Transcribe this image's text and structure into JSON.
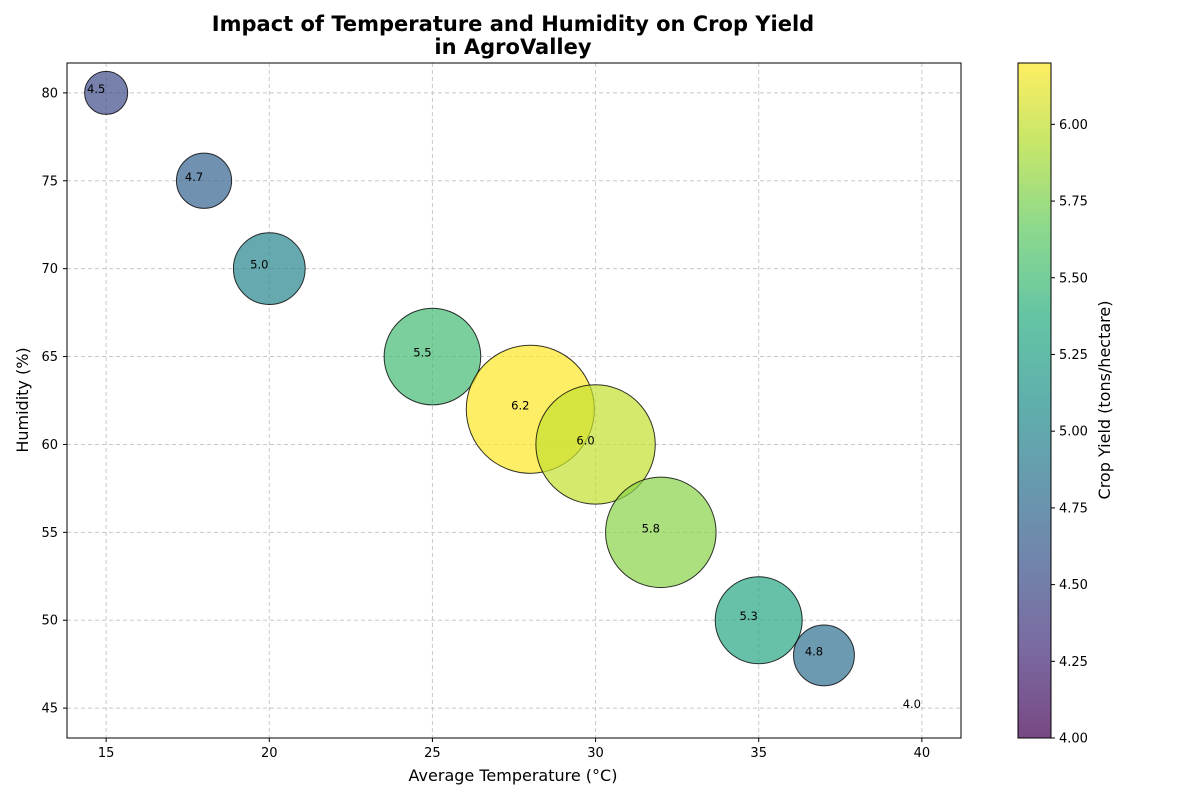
{
  "chart_data": {
    "type": "scatter",
    "title_line1": "Impact of Temperature and Humidity on Crop Yield",
    "title_line2": "in AgroValley",
    "xlabel": "Average Temperature (°C)",
    "ylabel": "Humidity (%)",
    "colorbar_label": "Crop Yield (tons/hectare)",
    "xlim": [
      13.8,
      41.2
    ],
    "ylim": [
      43.3,
      81.7
    ],
    "xticks": [
      15,
      20,
      25,
      30,
      35,
      40
    ],
    "yticks": [
      45,
      50,
      55,
      60,
      65,
      70,
      75,
      80
    ],
    "colorbar_range": [
      4.0,
      6.2
    ],
    "colorbar_ticks": [
      "4.00",
      "4.25",
      "4.50",
      "4.75",
      "5.00",
      "5.25",
      "5.50",
      "5.75",
      "6.00"
    ],
    "colormap": "viridis",
    "grid": true,
    "points": [
      {
        "temperature": 15,
        "humidity": 80,
        "yield": 4.5,
        "label": "4.5"
      },
      {
        "temperature": 18,
        "humidity": 75,
        "yield": 4.7,
        "label": "4.7"
      },
      {
        "temperature": 20,
        "humidity": 70,
        "yield": 5.0,
        "label": "5.0"
      },
      {
        "temperature": 25,
        "humidity": 65,
        "yield": 5.5,
        "label": "5.5"
      },
      {
        "temperature": 28,
        "humidity": 62,
        "yield": 6.2,
        "label": "6.2"
      },
      {
        "temperature": 30,
        "humidity": 60,
        "yield": 6.0,
        "label": "6.0"
      },
      {
        "temperature": 32,
        "humidity": 55,
        "yield": 5.8,
        "label": "5.8"
      },
      {
        "temperature": 35,
        "humidity": 50,
        "yield": 5.3,
        "label": "5.3"
      },
      {
        "temperature": 37,
        "humidity": 48,
        "yield": 4.8,
        "label": "4.8"
      },
      {
        "temperature": 40,
        "humidity": 45,
        "yield": 4.0,
        "label": "4.0"
      }
    ]
  }
}
